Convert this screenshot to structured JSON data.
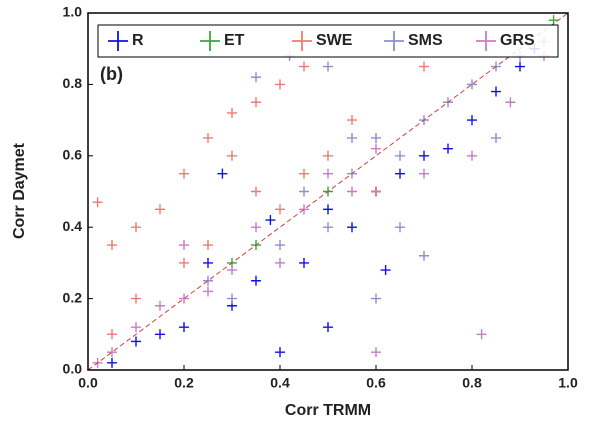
{
  "chart_data": {
    "type": "scatter",
    "xlabel": "Corr TRMM",
    "ylabel": "Corr Daymet",
    "annotation": "(b)",
    "xlim": [
      0,
      1
    ],
    "ylim": [
      0,
      1
    ],
    "xticks": [
      {
        "value": 0,
        "label": "0.0"
      },
      0.2,
      0.4,
      0.6,
      0.8,
      {
        "value": 1,
        "label": "1.0"
      }
    ],
    "yticks": [
      {
        "value": 0,
        "label": "0.0"
      },
      0.2,
      0.4,
      0.6,
      0.8,
      {
        "value": 1,
        "label": "1.0"
      }
    ],
    "legend": "top",
    "series": [
      {
        "name": "R",
        "color": "#1010e8",
        "x": [
          0.05,
          0.1,
          0.15,
          0.2,
          0.25,
          0.3,
          0.35,
          0.4,
          0.45,
          0.5,
          0.55,
          0.6,
          0.65,
          0.7,
          0.75,
          0.8,
          0.85,
          0.9,
          0.5,
          0.38,
          0.28,
          0.62,
          0.93
        ],
        "y": [
          0.02,
          0.08,
          0.1,
          0.12,
          0.3,
          0.18,
          0.25,
          0.05,
          0.3,
          0.45,
          0.4,
          0.5,
          0.55,
          0.6,
          0.62,
          0.7,
          0.78,
          0.85,
          0.12,
          0.42,
          0.55,
          0.28,
          0.9
        ]
      },
      {
        "name": "ET",
        "color": "#3aa83a",
        "x": [
          0.3,
          0.35,
          0.5,
          0.97
        ],
        "y": [
          0.3,
          0.35,
          0.5,
          0.98
        ]
      },
      {
        "name": "SWE",
        "color": "#f07a70",
        "x": [
          0.02,
          0.05,
          0.1,
          0.15,
          0.2,
          0.25,
          0.3,
          0.35,
          0.4,
          0.45,
          0.5,
          0.55,
          0.4,
          0.45,
          0.35,
          0.2,
          0.1,
          0.05,
          0.25,
          0.6,
          0.7,
          0.3
        ],
        "y": [
          0.47,
          0.35,
          0.4,
          0.45,
          0.55,
          0.65,
          0.6,
          0.5,
          0.45,
          0.55,
          0.6,
          0.7,
          0.8,
          0.85,
          0.75,
          0.3,
          0.2,
          0.1,
          0.35,
          0.5,
          0.85,
          0.72
        ]
      },
      {
        "name": "SMS",
        "color": "#8e8ed0",
        "x": [
          0.25,
          0.3,
          0.4,
          0.45,
          0.5,
          0.55,
          0.6,
          0.65,
          0.7,
          0.75,
          0.8,
          0.85,
          0.9,
          0.95,
          0.42,
          0.5,
          0.35,
          0.65,
          0.7,
          0.55,
          0.6,
          0.85
        ],
        "y": [
          0.25,
          0.2,
          0.35,
          0.5,
          0.4,
          0.55,
          0.65,
          0.6,
          0.7,
          0.75,
          0.8,
          0.85,
          0.88,
          0.92,
          0.88,
          0.85,
          0.82,
          0.4,
          0.32,
          0.65,
          0.2,
          0.65
        ]
      },
      {
        "name": "GRS",
        "color": "#c77cc7",
        "x": [
          0.02,
          0.05,
          0.1,
          0.15,
          0.2,
          0.25,
          0.3,
          0.2,
          0.35,
          0.4,
          0.45,
          0.5,
          0.55,
          0.6,
          0.7,
          0.8,
          0.88,
          0.95,
          0.82,
          0.6
        ],
        "y": [
          0.02,
          0.05,
          0.12,
          0.18,
          0.2,
          0.22,
          0.28,
          0.35,
          0.4,
          0.3,
          0.45,
          0.55,
          0.5,
          0.62,
          0.55,
          0.6,
          0.75,
          0.88,
          0.1,
          0.05
        ]
      }
    ]
  }
}
